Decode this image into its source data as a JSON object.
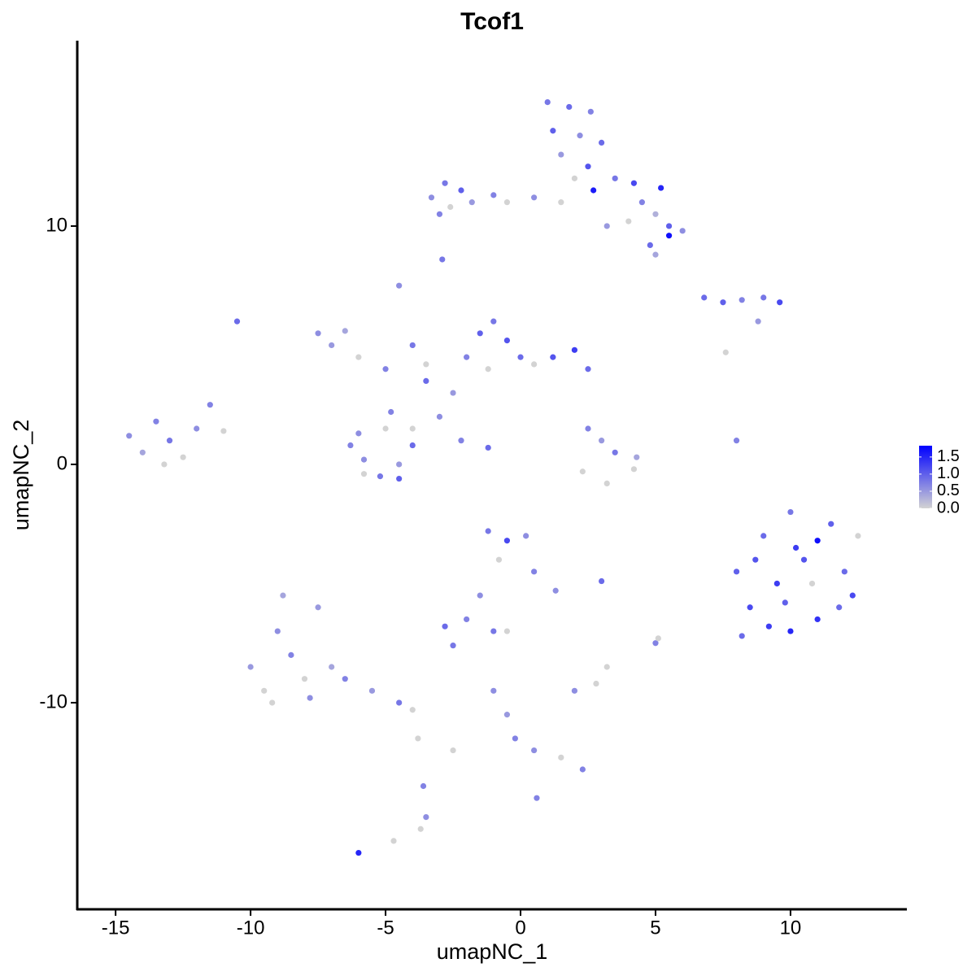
{
  "chart_data": {
    "type": "scatter",
    "title": "Tcof1",
    "x_label": "umapNC_1",
    "y_label": "umapNC_2",
    "xlim": [
      -16.42,
      14.31
    ],
    "ylim": [
      -18.67,
      17.78
    ],
    "xticks": [
      -15,
      -10,
      -5,
      0,
      5,
      10
    ],
    "yticks": [
      -10,
      0,
      10
    ],
    "color_low": "#d3d3d3",
    "color_high": "#0000ff",
    "colorlim": [
      0,
      1.83
    ],
    "colorticks": [
      {
        "value": 0,
        "label": "0.0"
      },
      {
        "value": 0.5,
        "label": "0.5"
      },
      {
        "value": 1,
        "label": "1.0"
      },
      {
        "value": 1.5,
        "label": "1.5"
      }
    ],
    "x": [
      1.0,
      1.8,
      2.6,
      1.2,
      2.2,
      3.0,
      1.5,
      2.5,
      3.5,
      4.2,
      5.2,
      2.7,
      4.5,
      5.0,
      5.5,
      6.0,
      5.5,
      4.8,
      5.0,
      4.0,
      0.5,
      -0.5,
      -1.0,
      1.5,
      3.2,
      2.0,
      -3.3,
      -2.8,
      -2.2,
      -2.6,
      -1.8,
      -3.0,
      -2.9,
      6.8,
      7.5,
      8.2,
      9.0,
      9.6,
      8.8,
      7.6,
      -7.5,
      -7.0,
      -6.5,
      -6.0,
      -5.0,
      -4.5,
      -4.0,
      -3.5,
      -2.5,
      -2.0,
      -1.5,
      -1.0,
      -0.5,
      0.0,
      0.5,
      1.2,
      2.0,
      2.5,
      -1.2,
      -3.0,
      -2.2,
      -1.2,
      -4.0,
      -3.5,
      -6.3,
      -5.8,
      -5.2,
      -4.5,
      -4.0,
      -5.0,
      -4.5,
      -5.8,
      -6.0,
      -4.8,
      -14.5,
      -14.0,
      -13.5,
      -13.0,
      -12.5,
      -12.0,
      -11.5,
      -13.2,
      -11.0,
      -10.5,
      2.5,
      3.0,
      3.5,
      2.3,
      3.2,
      4.2,
      4.3,
      8.0,
      8.0,
      8.5,
      9.0,
      9.5,
      10.0,
      10.5,
      11.0,
      11.0,
      11.5,
      12.0,
      12.5,
      12.3,
      10.0,
      9.2,
      8.2,
      9.8,
      10.8,
      11.8,
      8.7,
      10.2,
      -1.2,
      -0.5,
      0.2,
      -0.8,
      0.5,
      1.3,
      -1.5,
      -2.0,
      -2.8,
      -2.5,
      -0.5,
      3.0,
      -10.0,
      -9.5,
      -9.0,
      -8.8,
      -8.5,
      -8.0,
      -7.5,
      -7.8,
      -7.0,
      -6.5,
      -5.5,
      -4.5,
      -4.0,
      -9.2,
      -3.8,
      -3.6,
      -3.5,
      -3.7,
      -6.0,
      -4.7,
      0.6,
      -2.5,
      -1.0,
      -0.5,
      -0.2,
      0.5,
      1.5,
      2.3,
      2.0,
      2.8,
      3.2,
      5.0,
      -1.0,
      5.1
    ],
    "y": [
      15.2,
      15.0,
      14.8,
      14.0,
      13.8,
      13.5,
      13.0,
      12.5,
      12.0,
      11.8,
      11.6,
      11.5,
      11.0,
      10.5,
      10.0,
      9.8,
      9.6,
      9.2,
      8.8,
      10.2,
      11.2,
      11.0,
      11.3,
      11.0,
      10.0,
      12.0,
      11.2,
      11.8,
      11.5,
      10.8,
      11.0,
      10.5,
      8.6,
      7.0,
      6.8,
      6.9,
      7.0,
      6.8,
      6.0,
      4.7,
      5.5,
      5.0,
      5.6,
      4.5,
      4.0,
      7.5,
      5.0,
      3.5,
      3.0,
      4.5,
      5.5,
      6.0,
      5.2,
      4.5,
      4.2,
      4.5,
      4.8,
      4.0,
      4.0,
      2.0,
      1.0,
      0.7,
      1.5,
      4.2,
      0.8,
      0.2,
      -0.5,
      0.0,
      0.8,
      1.5,
      -0.6,
      -0.4,
      1.3,
      2.2,
      1.2,
      0.5,
      1.8,
      1.0,
      0.3,
      1.5,
      2.5,
      0.0,
      1.4,
      6.0,
      1.5,
      1.0,
      0.5,
      -0.3,
      -0.8,
      -0.2,
      0.3,
      1.0,
      -4.5,
      -6.0,
      -3.0,
      -5.0,
      -2.0,
      -4.0,
      -6.5,
      -3.2,
      -2.5,
      -4.5,
      -3.0,
      -5.5,
      -7.0,
      -6.8,
      -7.2,
      -5.8,
      -5.0,
      -6.0,
      -4.0,
      -3.5,
      -2.8,
      -3.2,
      -3.0,
      -4.0,
      -4.5,
      -5.3,
      -5.5,
      -6.5,
      -6.8,
      -7.6,
      -7.0,
      -4.9,
      -8.5,
      -9.5,
      -7.0,
      -5.5,
      -8.0,
      -9.0,
      -6.0,
      -9.8,
      -8.5,
      -9.0,
      -9.5,
      -10.0,
      -10.3,
      -10.0,
      -11.5,
      -13.5,
      -14.8,
      -15.3,
      -16.3,
      -15.8,
      -14.0,
      -12.0,
      -9.5,
      -10.5,
      -11.5,
      -12.0,
      -12.3,
      -12.8,
      -9.5,
      -9.2,
      -8.5,
      -7.5,
      -7.0,
      -7.3
    ],
    "values": [
      0.8,
      0.9,
      0.7,
      1.0,
      0.6,
      0.9,
      0.5,
      1.1,
      0.8,
      1.2,
      1.5,
      1.6,
      0.7,
      0.3,
      1.0,
      0.6,
      1.7,
      0.9,
      0.4,
      0.0,
      0.6,
      0.0,
      0.7,
      0.0,
      0.5,
      0.0,
      0.6,
      0.8,
      1.0,
      0.0,
      0.5,
      0.7,
      0.8,
      0.9,
      1.0,
      0.7,
      0.8,
      1.2,
      0.5,
      0.0,
      0.6,
      0.5,
      0.4,
      0.0,
      0.7,
      0.6,
      0.8,
      0.9,
      0.5,
      0.7,
      1.0,
      0.8,
      1.1,
      0.9,
      0.0,
      1.1,
      1.3,
      0.9,
      0.0,
      0.6,
      0.7,
      0.9,
      0.0,
      0.0,
      0.7,
      0.6,
      0.8,
      0.5,
      0.9,
      0.0,
      1.0,
      0.0,
      0.6,
      0.7,
      0.6,
      0.4,
      0.7,
      0.8,
      0.0,
      0.6,
      0.7,
      0.0,
      0.0,
      0.9,
      0.7,
      0.5,
      0.8,
      0.0,
      0.0,
      0.0,
      0.4,
      0.7,
      1.0,
      1.2,
      0.9,
      1.3,
      0.8,
      1.1,
      1.4,
      1.7,
      1.0,
      0.9,
      0.0,
      1.2,
      1.5,
      1.3,
      0.9,
      1.0,
      0.0,
      0.9,
      1.1,
      1.3,
      0.8,
      1.2,
      0.6,
      0.0,
      0.7,
      0.6,
      0.6,
      0.7,
      0.9,
      0.8,
      0.0,
      0.9,
      0.5,
      0.0,
      0.6,
      0.4,
      0.7,
      0.0,
      0.5,
      0.6,
      0.4,
      0.7,
      0.5,
      0.8,
      0.0,
      0.0,
      0.0,
      0.7,
      0.6,
      0.0,
      1.5,
      0.0,
      0.7,
      0.0,
      0.6,
      0.5,
      0.7,
      0.6,
      0.0,
      0.7,
      0.6,
      0.0,
      0.0,
      0.7,
      0.8,
      0.0
    ]
  }
}
